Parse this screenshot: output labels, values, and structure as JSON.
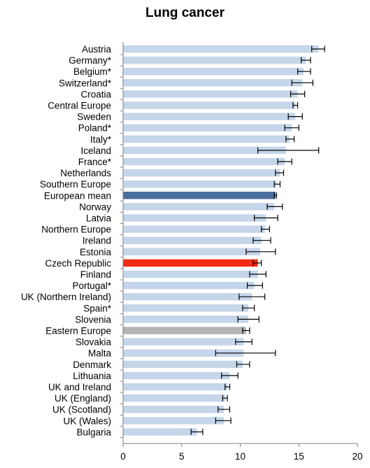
{
  "chart_data": {
    "type": "bar",
    "orientation": "horizontal",
    "title": "Lung cancer",
    "xlabel": "",
    "ylabel": "",
    "xlim": [
      0,
      20
    ],
    "xticks": [
      0,
      5,
      10,
      15,
      20
    ],
    "grid": false,
    "error_bars": true,
    "colors": {
      "default": "#c5d6ea",
      "european_mean": "#4a6e9b",
      "czech_republic": "#f22c14",
      "eastern_europe": "#b4b4b4",
      "error_bar": "#000000"
    },
    "categories": [
      "Austria",
      "Germany*",
      "Belgium*",
      "Switzerland*",
      "Croatia",
      "Central Europe",
      "Sweden",
      "Poland*",
      "Italy*",
      "Iceland",
      "France*",
      "Netherlands",
      "Southern Europe",
      "European mean",
      "Norway",
      "Latvia",
      "Northern Europe",
      "Ireland",
      "Estonia",
      "Czech Republic",
      "Finland",
      "Portugal*",
      "UK (Northern Ireland)",
      "Spain*",
      "Slovenia",
      "Eastern Europe",
      "Slovakia",
      "Malta",
      "Denmark",
      "Lithuania",
      "UK and Ireland",
      "UK (England)",
      "UK (Scotland)",
      "UK (Wales)",
      "Bulgaria"
    ],
    "values": [
      16.7,
      15.6,
      15.4,
      15.3,
      14.9,
      14.7,
      14.7,
      14.4,
      14.2,
      13.9,
      13.8,
      13.4,
      13.1,
      13.0,
      12.9,
      12.2,
      12.1,
      11.8,
      11.7,
      11.5,
      11.5,
      11.2,
      11.0,
      10.7,
      10.7,
      10.5,
      10.3,
      10.3,
      10.2,
      9.1,
      8.9,
      8.7,
      8.6,
      8.6,
      6.3
    ],
    "err_low": [
      16.1,
      15.2,
      14.9,
      14.4,
      14.3,
      14.5,
      14.1,
      13.8,
      13.9,
      11.5,
      13.2,
      13.0,
      12.9,
      12.9,
      12.3,
      11.2,
      11.8,
      11.1,
      10.5,
      11.1,
      10.8,
      10.6,
      9.9,
      10.2,
      9.8,
      10.2,
      9.6,
      7.9,
      9.7,
      8.4,
      8.7,
      8.5,
      8.1,
      7.9,
      5.8
    ],
    "err_high": [
      17.2,
      16.0,
      16.0,
      16.2,
      15.5,
      14.9,
      15.3,
      15.0,
      14.6,
      16.7,
      14.4,
      13.7,
      13.4,
      13.1,
      13.6,
      13.2,
      12.5,
      12.6,
      13.0,
      11.8,
      12.2,
      11.9,
      12.1,
      11.2,
      11.6,
      10.8,
      11.0,
      13.0,
      10.8,
      9.8,
      9.1,
      8.9,
      9.1,
      9.2,
      6.8
    ]
  }
}
